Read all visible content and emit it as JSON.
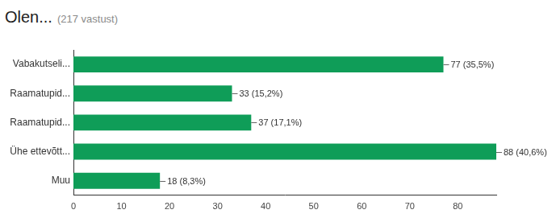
{
  "chart_data": {
    "type": "bar",
    "title": "Olen...",
    "subtitle": "(217 vastust)",
    "orientation": "horizontal",
    "categories": [
      "Vabakutseli...",
      "Raamatupid...",
      "Raamatupid...",
      "Ühe ettevõtt...",
      "Muu"
    ],
    "values": [
      77,
      33,
      37,
      88,
      18
    ],
    "value_labels": [
      "77 (35,5%)",
      "33 (15,2%)",
      "37 (17,1%)",
      "88 (40,6%)",
      "18 (8,3%)"
    ],
    "data_labels": true,
    "color": "#0f9d58",
    "xlim": [
      0,
      88
    ],
    "xticks": [
      0,
      10,
      20,
      30,
      40,
      50,
      60,
      70,
      80
    ],
    "grid": false
  }
}
